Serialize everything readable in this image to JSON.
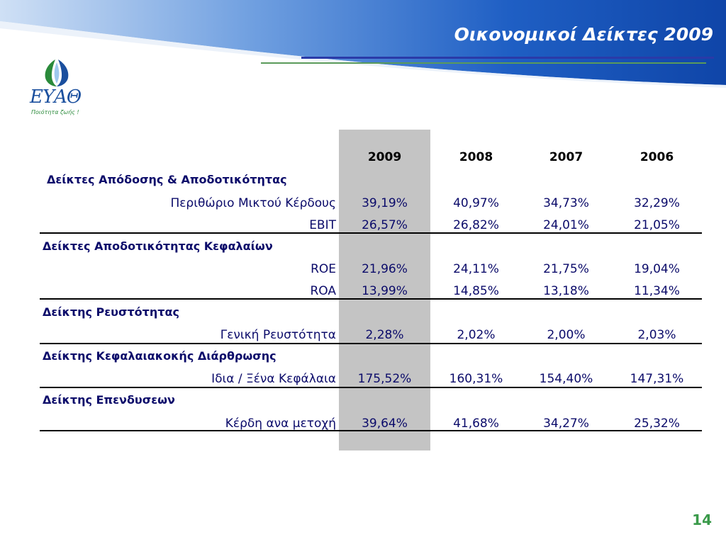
{
  "slide": {
    "title": "Οικονομικοί Δείκτες 2009",
    "page_number": "14"
  },
  "logo": {
    "wordmark": "ΕΥΑΘ",
    "tagline": "Ποιότητα ζωής !"
  },
  "table": {
    "years": [
      "2009",
      "2008",
      "2007",
      "2006"
    ],
    "sections": [
      {
        "title": "Δείκτες Απόδοσης & Αποδοτικότητας",
        "rows": [
          {
            "label": "Περιθώριο Μικτού Κέρδους",
            "values": [
              "39,19%",
              "40,97%",
              "34,73%",
              "32,29%"
            ]
          },
          {
            "label": "EBIT",
            "values": [
              "26,57%",
              "26,82%",
              "24,01%",
              "21,05%"
            ]
          }
        ]
      },
      {
        "title": "Δείκτες Αποδοτικότητας Κεφαλαίων",
        "rows": [
          {
            "label": "ROE",
            "values": [
              "21,96%",
              "24,11%",
              "21,75%",
              "19,04%"
            ]
          },
          {
            "label": "ROA",
            "values": [
              "13,99%",
              "14,85%",
              "13,18%",
              "11,34%"
            ]
          }
        ]
      },
      {
        "title": "Δείκτης Ρευστότητας",
        "rows": [
          {
            "label": "Γενική Ρευστότητα",
            "values": [
              "2,28%",
              "2,02%",
              "2,00%",
              "2,03%"
            ]
          }
        ]
      },
      {
        "title": "Δείκτης Κεφαλαιακοκής Διάρθρωσης",
        "rows": [
          {
            "label": "Ιδια / Ξένα Κεφάλαια",
            "values": [
              "175,52%",
              "160,31%",
              "154,40%",
              "147,31%"
            ]
          }
        ]
      },
      {
        "title": "Δείκτης Επενδυσεων",
        "rows": [
          {
            "label": "Κέρδη ανα μετοχή",
            "values": [
              "39,64%",
              "41,68%",
              "34,27%",
              "25,32%"
            ]
          }
        ]
      }
    ]
  },
  "colors": {
    "header_blue": "#1556b8",
    "text_navy": "#0b0b6a",
    "highlight_gray": "#c4c4c4",
    "page_number_green": "#3a9a4a"
  }
}
